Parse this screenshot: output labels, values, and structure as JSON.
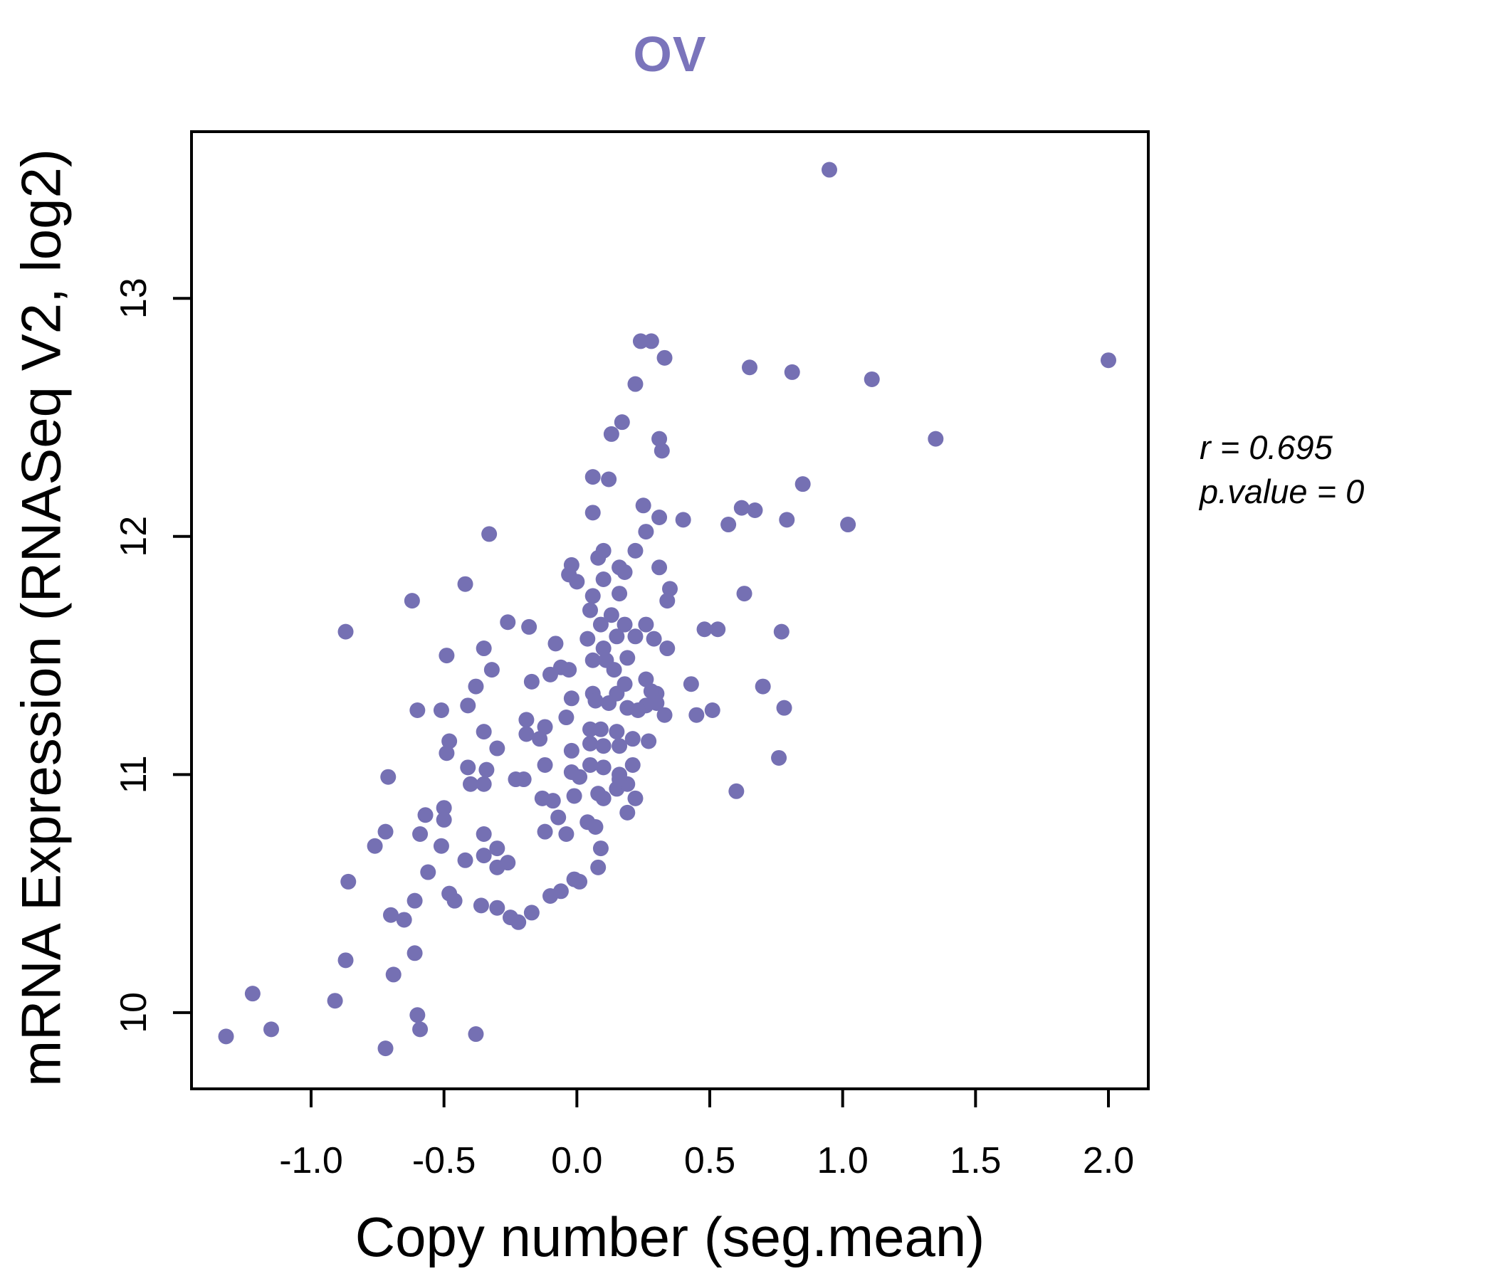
{
  "title": "OV",
  "annotation": {
    "line1": "r = 0.695",
    "line2": "p.value = 0"
  },
  "chart_data": {
    "type": "scatter",
    "title": "OV",
    "xlabel": "Copy number (seg.mean)",
    "ylabel": "mRNA Expression (RNASeq V2, log2)",
    "xlim": [
      -1.45,
      2.15
    ],
    "ylim": [
      9.68,
      13.7
    ],
    "x_ticks": [
      -1.0,
      -0.5,
      0.0,
      0.5,
      1.0,
      1.5,
      2.0
    ],
    "x_tick_labels": [
      "-1.0",
      "-0.5",
      "0.0",
      "0.5",
      "1.0",
      "1.5",
      "2.0"
    ],
    "y_ticks": [
      10,
      11,
      12,
      13
    ],
    "y_tick_labels": [
      "10",
      "11",
      "12",
      "13"
    ],
    "grid": false,
    "legend_position": "none",
    "correlation_r": 0.695,
    "p_value": 0,
    "point_color": "#7570b3",
    "title_color": "#7a74bb",
    "axis_color": "#000000",
    "points": [
      [
        0.95,
        13.54
      ],
      [
        0.24,
        12.82
      ],
      [
        0.28,
        12.82
      ],
      [
        0.33,
        12.75
      ],
      [
        0.22,
        12.64
      ],
      [
        0.65,
        12.71
      ],
      [
        0.81,
        12.69
      ],
      [
        0.17,
        12.48
      ],
      [
        0.13,
        12.43
      ],
      [
        1.11,
        12.66
      ],
      [
        2.0,
        12.74
      ],
      [
        1.35,
        12.41
      ],
      [
        0.31,
        12.41
      ],
      [
        0.32,
        12.36
      ],
      [
        0.06,
        12.25
      ],
      [
        0.12,
        12.24
      ],
      [
        0.85,
        12.22
      ],
      [
        0.25,
        12.13
      ],
      [
        0.06,
        12.1
      ],
      [
        0.31,
        12.08
      ],
      [
        0.4,
        12.07
      ],
      [
        0.62,
        12.12
      ],
      [
        0.67,
        12.11
      ],
      [
        0.57,
        12.05
      ],
      [
        0.79,
        12.07
      ],
      [
        1.02,
        12.05
      ],
      [
        0.26,
        12.02
      ],
      [
        -0.33,
        12.01
      ],
      [
        -0.42,
        11.8
      ],
      [
        -0.62,
        11.73
      ],
      [
        -0.26,
        11.64
      ],
      [
        -0.87,
        11.6
      ],
      [
        -0.49,
        11.5
      ],
      [
        -0.35,
        11.53
      ],
      [
        -0.32,
        11.44
      ],
      [
        -0.38,
        11.37
      ],
      [
        -0.41,
        11.29
      ],
      [
        -0.6,
        11.27
      ],
      [
        -0.51,
        11.27
      ],
      [
        -0.35,
        11.18
      ],
      [
        -0.48,
        11.14
      ],
      [
        -0.3,
        11.11
      ],
      [
        -0.49,
        11.09
      ],
      [
        0.1,
        11.94
      ],
      [
        0.22,
        11.94
      ],
      [
        0.08,
        11.91
      ],
      [
        0.16,
        11.87
      ],
      [
        -0.02,
        11.88
      ],
      [
        -0.03,
        11.84
      ],
      [
        0.18,
        11.85
      ],
      [
        0.31,
        11.87
      ],
      [
        0.0,
        11.81
      ],
      [
        0.1,
        11.82
      ],
      [
        0.06,
        11.75
      ],
      [
        0.16,
        11.76
      ],
      [
        0.35,
        11.78
      ],
      [
        0.34,
        11.73
      ],
      [
        0.63,
        11.76
      ],
      [
        0.05,
        11.69
      ],
      [
        -0.18,
        11.62
      ],
      [
        0.13,
        11.67
      ],
      [
        0.09,
        11.63
      ],
      [
        0.18,
        11.63
      ],
      [
        0.26,
        11.63
      ],
      [
        0.15,
        11.58
      ],
      [
        0.22,
        11.58
      ],
      [
        0.29,
        11.57
      ],
      [
        0.48,
        11.61
      ],
      [
        0.53,
        11.61
      ],
      [
        0.77,
        11.6
      ],
      [
        -0.08,
        11.55
      ],
      [
        0.04,
        11.57
      ],
      [
        0.1,
        11.53
      ],
      [
        0.34,
        11.53
      ],
      [
        0.06,
        11.48
      ],
      [
        0.11,
        11.48
      ],
      [
        0.19,
        11.49
      ],
      [
        -0.06,
        11.45
      ],
      [
        -0.1,
        11.42
      ],
      [
        -0.03,
        11.44
      ],
      [
        0.14,
        11.44
      ],
      [
        0.18,
        11.38
      ],
      [
        0.26,
        11.4
      ],
      [
        0.43,
        11.38
      ],
      [
        -0.17,
        11.39
      ],
      [
        -0.02,
        11.32
      ],
      [
        0.06,
        11.34
      ],
      [
        0.3,
        11.34
      ],
      [
        0.28,
        11.35
      ],
      [
        0.26,
        11.29
      ],
      [
        0.3,
        11.3
      ],
      [
        0.15,
        11.34
      ],
      [
        0.12,
        11.3
      ],
      [
        0.07,
        11.31
      ],
      [
        0.19,
        11.28
      ],
      [
        0.23,
        11.27
      ],
      [
        0.33,
        11.25
      ],
      [
        0.7,
        11.37
      ],
      [
        0.51,
        11.27
      ],
      [
        -0.04,
        11.24
      ],
      [
        -0.12,
        11.2
      ],
      [
        -0.19,
        11.23
      ],
      [
        -0.19,
        11.17
      ],
      [
        -0.14,
        11.15
      ],
      [
        0.05,
        11.19
      ],
      [
        0.09,
        11.19
      ],
      [
        0.15,
        11.18
      ],
      [
        0.05,
        11.13
      ],
      [
        0.1,
        11.12
      ],
      [
        0.16,
        11.12
      ],
      [
        0.21,
        11.15
      ],
      [
        0.27,
        11.14
      ],
      [
        -0.02,
        11.1
      ],
      [
        0.78,
        11.28
      ],
      [
        0.76,
        11.07
      ],
      [
        0.45,
        11.25
      ],
      [
        -0.12,
        11.04
      ],
      [
        -0.02,
        11.01
      ],
      [
        0.01,
        10.99
      ],
      [
        0.05,
        11.04
      ],
      [
        0.1,
        11.03
      ],
      [
        0.16,
        11.0
      ],
      [
        0.21,
        11.04
      ],
      [
        -0.2,
        10.98
      ],
      [
        -0.13,
        10.9
      ],
      [
        -0.09,
        10.89
      ],
      [
        -0.07,
        10.82
      ],
      [
        -0.12,
        10.76
      ],
      [
        -0.04,
        10.75
      ],
      [
        -0.01,
        10.91
      ],
      [
        0.08,
        10.92
      ],
      [
        0.1,
        10.9
      ],
      [
        0.15,
        10.94
      ],
      [
        0.19,
        10.96
      ],
      [
        0.16,
        10.98
      ],
      [
        0.22,
        10.9
      ],
      [
        0.19,
        10.84
      ],
      [
        0.04,
        10.8
      ],
      [
        0.07,
        10.78
      ],
      [
        0.09,
        10.69
      ],
      [
        0.08,
        10.61
      ],
      [
        -0.01,
        10.56
      ],
      [
        0.01,
        10.55
      ],
      [
        -0.06,
        10.51
      ],
      [
        -0.1,
        10.49
      ],
      [
        -0.17,
        10.42
      ],
      [
        -0.22,
        10.38
      ],
      [
        0.6,
        10.93
      ],
      [
        -0.71,
        10.99
      ],
      [
        -0.41,
        11.03
      ],
      [
        -0.34,
        11.02
      ],
      [
        -0.4,
        10.96
      ],
      [
        -0.35,
        10.96
      ],
      [
        -0.23,
        10.98
      ],
      [
        -0.57,
        10.83
      ],
      [
        -0.5,
        10.86
      ],
      [
        -0.5,
        10.81
      ],
      [
        -0.72,
        10.76
      ],
      [
        -0.59,
        10.75
      ],
      [
        -0.76,
        10.7
      ],
      [
        -0.51,
        10.7
      ],
      [
        -0.35,
        10.75
      ],
      [
        -0.3,
        10.69
      ],
      [
        -0.35,
        10.66
      ],
      [
        -0.42,
        10.64
      ],
      [
        -0.3,
        10.61
      ],
      [
        -0.26,
        10.63
      ],
      [
        -0.86,
        10.55
      ],
      [
        -0.56,
        10.59
      ],
      [
        -0.48,
        10.5
      ],
      [
        -0.46,
        10.47
      ],
      [
        -0.36,
        10.45
      ],
      [
        -0.3,
        10.44
      ],
      [
        -0.61,
        10.47
      ],
      [
        -0.7,
        10.41
      ],
      [
        -0.65,
        10.39
      ],
      [
        -0.25,
        10.4
      ],
      [
        -0.61,
        10.25
      ],
      [
        -0.87,
        10.22
      ],
      [
        -0.69,
        10.16
      ],
      [
        -1.22,
        10.08
      ],
      [
        -0.91,
        10.05
      ],
      [
        -0.6,
        9.99
      ],
      [
        -0.59,
        9.93
      ],
      [
        -0.38,
        9.91
      ],
      [
        -1.15,
        9.93
      ],
      [
        -1.32,
        9.9
      ],
      [
        -0.72,
        9.85
      ]
    ]
  }
}
